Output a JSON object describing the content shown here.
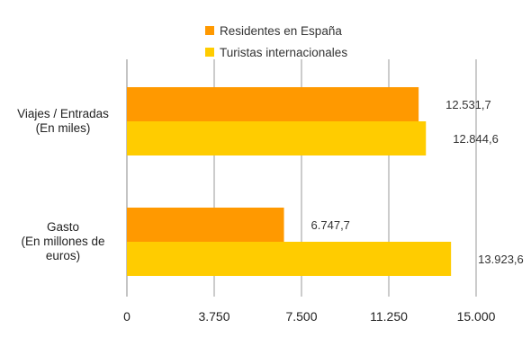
{
  "chart_data": {
    "type": "bar",
    "orientation": "horizontal",
    "categories": [
      "Viajes / Entradas\n(En miles)",
      "Gasto\n(En millones de\neuros)"
    ],
    "series": [
      {
        "name": "Residentes en España",
        "values": [
          12531.7,
          6747.7
        ],
        "labels": [
          "12.531,7",
          "6.747,7"
        ],
        "color": "#FF9900"
      },
      {
        "name": "Turistas internacionales",
        "values": [
          12844.6,
          13923.6
        ],
        "labels": [
          "12.844,6",
          "13.923,6"
        ],
        "color": "#FFCC00"
      }
    ],
    "xlim": [
      0,
      15000
    ],
    "xticks": [
      0,
      3750,
      7500,
      11250,
      15000
    ],
    "xtick_labels": [
      "0",
      "3.750",
      "7.500",
      "11.250",
      "15.000"
    ],
    "grid": "vertical",
    "legend_position": "top-center"
  }
}
